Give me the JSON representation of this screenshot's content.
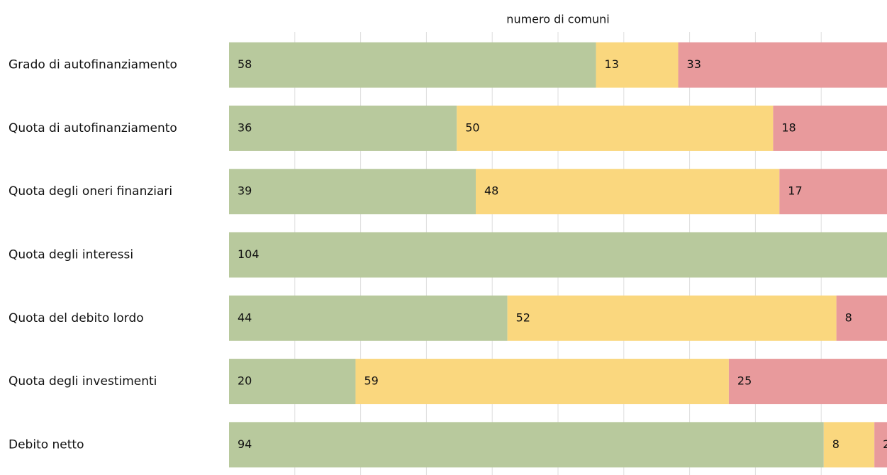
{
  "chart_data": {
    "type": "stacked-bar",
    "orientation": "horizontal",
    "x_label": "numero di comuni",
    "categories": [
      "Grado di autofinanziamento",
      "Quota di autofinanziamento",
      "Quota degli oneri finanziari",
      "Quota degli interessi",
      "Quota del debito lordo",
      "Quota degli investimenti",
      "Debito netto"
    ],
    "series": [
      {
        "color": "#b8c99d",
        "values": [
          58,
          36,
          39,
          104,
          44,
          20,
          94
        ]
      },
      {
        "color": "#fad77e",
        "values": [
          13,
          50,
          48,
          0,
          52,
          59,
          8
        ]
      },
      {
        "color": "#e89a9c",
        "values": [
          33,
          18,
          17,
          0,
          8,
          25,
          2
        ]
      }
    ],
    "xlim": [
      0,
      104
    ],
    "grid": true
  }
}
